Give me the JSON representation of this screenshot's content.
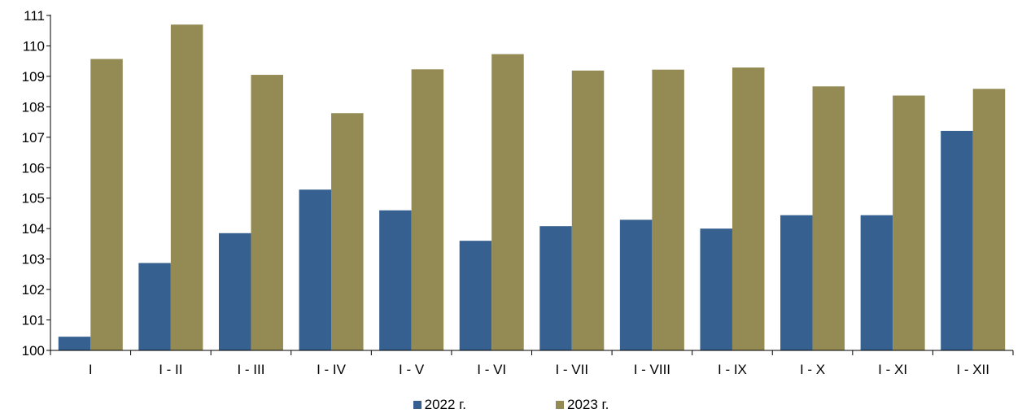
{
  "chart_data": {
    "type": "bar",
    "title": "",
    "xlabel": "",
    "ylabel": "",
    "ylim": [
      100,
      111
    ],
    "yticks": [
      100,
      101,
      102,
      103,
      104,
      105,
      106,
      107,
      108,
      109,
      110,
      111
    ],
    "grid": false,
    "legend_position": "bottom",
    "categories": [
      "I",
      "I - II",
      "I - III",
      "I - IV",
      "I - V",
      "I - VI",
      "I - VII",
      "I - VIII",
      "I - IX",
      "I - X",
      "I - XI",
      "I - XII"
    ],
    "series": [
      {
        "name": "2022 г.",
        "color": "#35608F",
        "values": [
          100.45,
          102.87,
          103.85,
          105.28,
          104.6,
          103.6,
          104.08,
          104.29,
          104.0,
          104.44,
          104.44,
          107.21
        ]
      },
      {
        "name": "2023 г.",
        "color": "#948B54",
        "values": [
          109.57,
          110.7,
          109.05,
          107.79,
          109.23,
          109.73,
          109.19,
          109.22,
          109.29,
          108.67,
          108.37,
          108.59
        ]
      }
    ]
  }
}
